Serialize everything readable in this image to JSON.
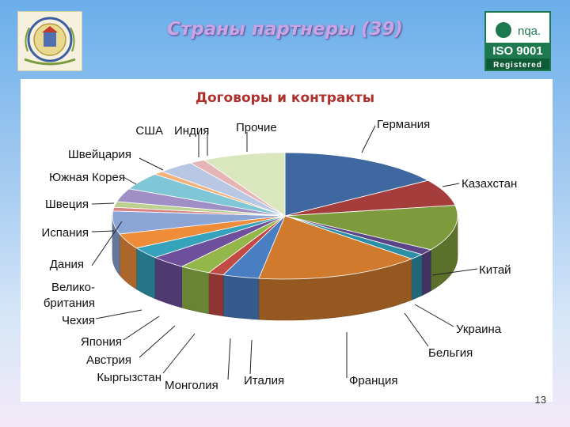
{
  "slide": {
    "title": "Страны партнеры (39)",
    "page_number": "13"
  },
  "logos": {
    "left": {
      "icon": "university-seal-icon"
    },
    "right": {
      "icon": "iso-9001-badge-icon",
      "line1": "nqa.",
      "line2": "ISO 9001",
      "line3": "Registered"
    }
  },
  "chart_data": {
    "type": "pie",
    "title": "Договоры и контракты",
    "legend": "none",
    "slices": [
      {
        "name": "Германия",
        "value": 16.0,
        "color": "#3f67a0"
      },
      {
        "name": "Казахстан",
        "value": 7.0,
        "color": "#a53d3c"
      },
      {
        "name": "Китай",
        "value": 12.0,
        "color": "#7d9b3c"
      },
      {
        "name": "Украина",
        "value": 1.5,
        "color": "#5b4589"
      },
      {
        "name": "Бельгия",
        "value": 1.5,
        "color": "#2d8fa5"
      },
      {
        "name": "Франция",
        "value": 16.0,
        "color": "#d07a2e"
      },
      {
        "name": "Италия",
        "value": 3.5,
        "color": "#4a7ec2"
      },
      {
        "name": "Монголия",
        "value": 1.5,
        "color": "#c24a45"
      },
      {
        "name": "Кыргызстан",
        "value": 3.0,
        "color": "#93b74a"
      },
      {
        "name": "Австрия",
        "value": 3.5,
        "color": "#6d4f9c"
      },
      {
        "name": "Япония",
        "value": 3.0,
        "color": "#35a3bb"
      },
      {
        "name": "Чехия",
        "value": 4.0,
        "color": "#ef8c3a"
      },
      {
        "name": "Великобритания",
        "value": 6.0,
        "color": "#8ba5d6"
      },
      {
        "name": "Дания",
        "value": 1.0,
        "color": "#d98482"
      },
      {
        "name": "Испания",
        "value": 1.5,
        "color": "#bcd18f"
      },
      {
        "name": "Швеция",
        "value": 3.5,
        "color": "#a08fc4"
      },
      {
        "name": "Южная Корея",
        "value": 4.5,
        "color": "#7fc6d7"
      },
      {
        "name": "Швейцария",
        "value": 1.0,
        "color": "#f3b27a"
      },
      {
        "name": "США",
        "value": 3.5,
        "color": "#b7c7e4"
      },
      {
        "name": "Индия",
        "value": 1.5,
        "color": "#e4b5b4"
      },
      {
        "name": "Прочие",
        "value": 8.0,
        "color": "#d9e6be"
      }
    ],
    "labels": {
      "germany": "Германия",
      "kazakhstan": "Казахстан",
      "china": "Китай",
      "ukraine": "Украина",
      "belgium": "Бельгия",
      "france": "Франция",
      "italy": "Италия",
      "mongolia": "Монголия",
      "kyrgyzstan": "Кыргызстан",
      "austria": "Австрия",
      "japan": "Япония",
      "czechia": "Чехия",
      "uk_line1": "Велико-",
      "uk_line2": "британия",
      "denmark": "Дания",
      "spain": "Испания",
      "sweden": "Швеция",
      "korea": "Южная Корея",
      "switzerland": "Швейцария",
      "usa": "США",
      "india": "Индия",
      "others": "Прочие"
    }
  }
}
